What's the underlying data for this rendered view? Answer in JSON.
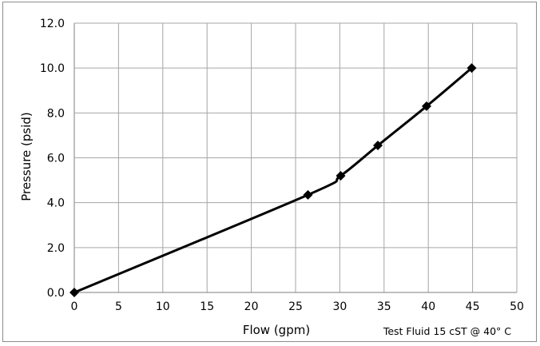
{
  "chart_data": {
    "type": "line",
    "xlabel": "Flow (gpm)",
    "ylabel": "Pressure (psid)",
    "annotation": "Test Fluid 15 cST @ 40° C",
    "xlim": [
      0,
      50
    ],
    "ylim": [
      0,
      12
    ],
    "x_ticks": [
      "0",
      "5",
      "10",
      "15",
      "20",
      "25",
      "30",
      "35",
      "40",
      "45",
      "50"
    ],
    "y_ticks": [
      "0.0",
      "2.0",
      "4.0",
      "6.0",
      "8.0",
      "10.0",
      "12.0"
    ],
    "grid": true,
    "legend": "none",
    "series": [
      {
        "x": [
          0,
          26.4,
          30.1,
          34.3,
          39.8,
          44.9
        ],
        "y": [
          0.0,
          4.35,
          5.2,
          6.55,
          8.3,
          10.0
        ],
        "color": "#000000",
        "marker": "diamond"
      }
    ]
  }
}
